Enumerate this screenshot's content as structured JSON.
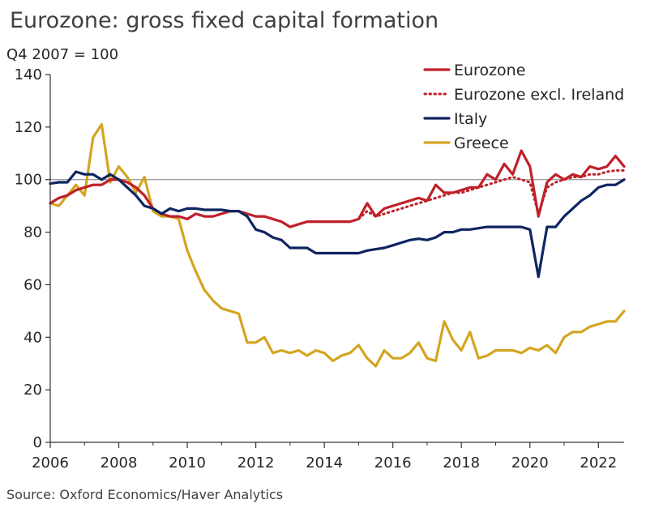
{
  "header": {
    "title": "Eurozone: gross fixed capital formation",
    "subtitle": "Q4 2007 = 100"
  },
  "footer": {
    "source": "Source: Oxford Economics/Haver Analytics"
  },
  "chart_data": {
    "type": "line",
    "title": "Eurozone: gross fixed capital formation",
    "ylabel": "Q4 2007 = 100",
    "xlabel": "",
    "xlim": [
      2006,
      2022.75
    ],
    "ylim": [
      0,
      140
    ],
    "x_ticks": [
      2006,
      2008,
      2010,
      2012,
      2014,
      2016,
      2018,
      2020,
      2022
    ],
    "y_ticks": [
      0,
      20,
      40,
      60,
      80,
      100,
      120,
      140
    ],
    "reference_line": 100,
    "grid": false,
    "legend_position": "top-right",
    "x": [
      2006.0,
      2006.25,
      2006.5,
      2006.75,
      2007.0,
      2007.25,
      2007.5,
      2007.75,
      2008.0,
      2008.25,
      2008.5,
      2008.75,
      2009.0,
      2009.25,
      2009.5,
      2009.75,
      2010.0,
      2010.25,
      2010.5,
      2010.75,
      2011.0,
      2011.25,
      2011.5,
      2011.75,
      2012.0,
      2012.25,
      2012.5,
      2012.75,
      2013.0,
      2013.25,
      2013.5,
      2013.75,
      2014.0,
      2014.25,
      2014.5,
      2014.75,
      2015.0,
      2015.25,
      2015.5,
      2015.75,
      2016.0,
      2016.25,
      2016.5,
      2016.75,
      2017.0,
      2017.25,
      2017.5,
      2017.75,
      2018.0,
      2018.25,
      2018.5,
      2018.75,
      2019.0,
      2019.25,
      2019.5,
      2019.75,
      2020.0,
      2020.25,
      2020.5,
      2020.75,
      2021.0,
      2021.25,
      2021.5,
      2021.75,
      2022.0,
      2022.25,
      2022.5,
      2022.75
    ],
    "series": [
      {
        "name": "Eurozone",
        "color": "#C0202A",
        "dash": "solid",
        "values": [
          91,
          93,
          94,
          96,
          97,
          98,
          98,
          100,
          100,
          99,
          97,
          94,
          89,
          87,
          86,
          86,
          85,
          87,
          86,
          86,
          87,
          88,
          88,
          87,
          86,
          86,
          85,
          84,
          82,
          83,
          84,
          84,
          84,
          84,
          84,
          84,
          85,
          91,
          86,
          89,
          90,
          91,
          92,
          93,
          92,
          98,
          95,
          95,
          96,
          97,
          97,
          102,
          100,
          106,
          102,
          111,
          105,
          86,
          99,
          102,
          100,
          102,
          101,
          105,
          104,
          105,
          109,
          105
        ]
      },
      {
        "name": "Eurozone excl. Ireland",
        "color": "#C0202A",
        "dash": "dotted",
        "values": [
          91,
          93,
          94,
          96,
          97,
          98,
          98,
          100,
          100,
          99,
          97,
          94,
          89,
          87,
          86,
          86,
          85,
          87,
          86,
          86,
          87,
          88,
          88,
          87,
          86,
          86,
          85,
          84,
          82,
          83,
          84,
          84,
          84,
          84,
          84,
          84,
          85,
          88,
          86,
          87,
          88,
          89,
          90,
          91,
          92,
          93,
          94,
          95,
          95,
          96,
          97,
          98,
          99,
          100,
          101,
          100,
          99,
          87,
          97,
          99,
          100,
          101,
          101,
          102,
          102,
          103,
          103.5,
          103.5
        ]
      },
      {
        "name": "Italy",
        "color": "#0E2560",
        "dash": "solid",
        "values": [
          98.5,
          99,
          99,
          103,
          102,
          102,
          100,
          102,
          100,
          97,
          94,
          90,
          89,
          87,
          89,
          88,
          89,
          89,
          88.5,
          88.5,
          88.5,
          88,
          88,
          86,
          81,
          80,
          78,
          77,
          74,
          74,
          74,
          72,
          72,
          72,
          72,
          72,
          72,
          73,
          73.5,
          74,
          75,
          76,
          77,
          77.5,
          77,
          78,
          80,
          80,
          81,
          81,
          81.5,
          82,
          82,
          82,
          82,
          82,
          81,
          63,
          82,
          82,
          86,
          89,
          92,
          94,
          97,
          98,
          98,
          100
        ]
      },
      {
        "name": "Greece",
        "color": "#D4A521",
        "dash": "solid",
        "values": [
          91,
          90,
          94,
          98,
          94,
          116,
          121,
          99,
          105,
          101,
          95,
          101,
          88,
          86,
          86,
          85,
          73,
          65,
          58,
          54,
          51,
          50,
          49,
          38,
          38,
          40,
          34,
          35,
          34,
          35,
          33,
          35,
          34,
          31,
          33,
          34,
          37,
          32,
          29,
          35,
          32,
          32,
          34,
          38,
          32,
          31,
          46,
          39,
          35,
          42,
          32,
          33,
          35,
          35,
          35,
          34,
          36,
          35,
          37,
          34,
          40,
          42,
          42,
          44,
          45,
          46,
          46,
          50
        ]
      }
    ]
  }
}
